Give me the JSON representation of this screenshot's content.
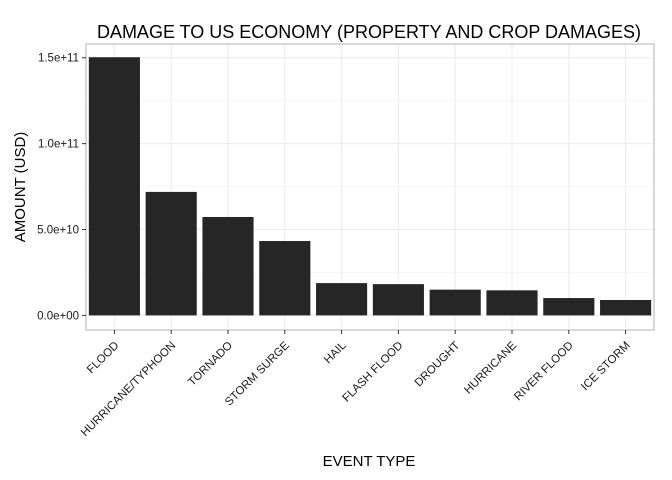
{
  "colors": {
    "bar": "#262626",
    "panel_border": "#b3b3b3",
    "grid_major": "#ebebeb",
    "grid_minor": "#f5f5f5",
    "background": "#ffffff"
  },
  "chart_data": {
    "type": "bar",
    "title": "DAMAGE TO US ECONOMY (PROPERTY AND CROP DAMAGES)",
    "xlabel": "EVENT TYPE",
    "ylabel": "AMOUNT (USD)",
    "categories": [
      "FLOOD",
      "HURRICANE/TYPHOON",
      "TORNADO",
      "STORM SURGE",
      "HAIL",
      "FLASH FLOOD",
      "DROUGHT",
      "HURRICANE",
      "RIVER FLOOD",
      "ICE STORM"
    ],
    "values": [
      150300000000,
      71900000000,
      57300000000,
      43300000000,
      18800000000,
      18200000000,
      15000000000,
      14600000000,
      10100000000,
      8970000000
    ],
    "ylim": [
      -8500000000,
      158000000000
    ],
    "yticks": [
      0,
      50000000000,
      100000000000,
      150000000000
    ],
    "ytick_labels": [
      "0.0e+00",
      "5.0e+10",
      "1.0e+11",
      "1.5e+11"
    ],
    "grid": true,
    "legend": "none"
  }
}
